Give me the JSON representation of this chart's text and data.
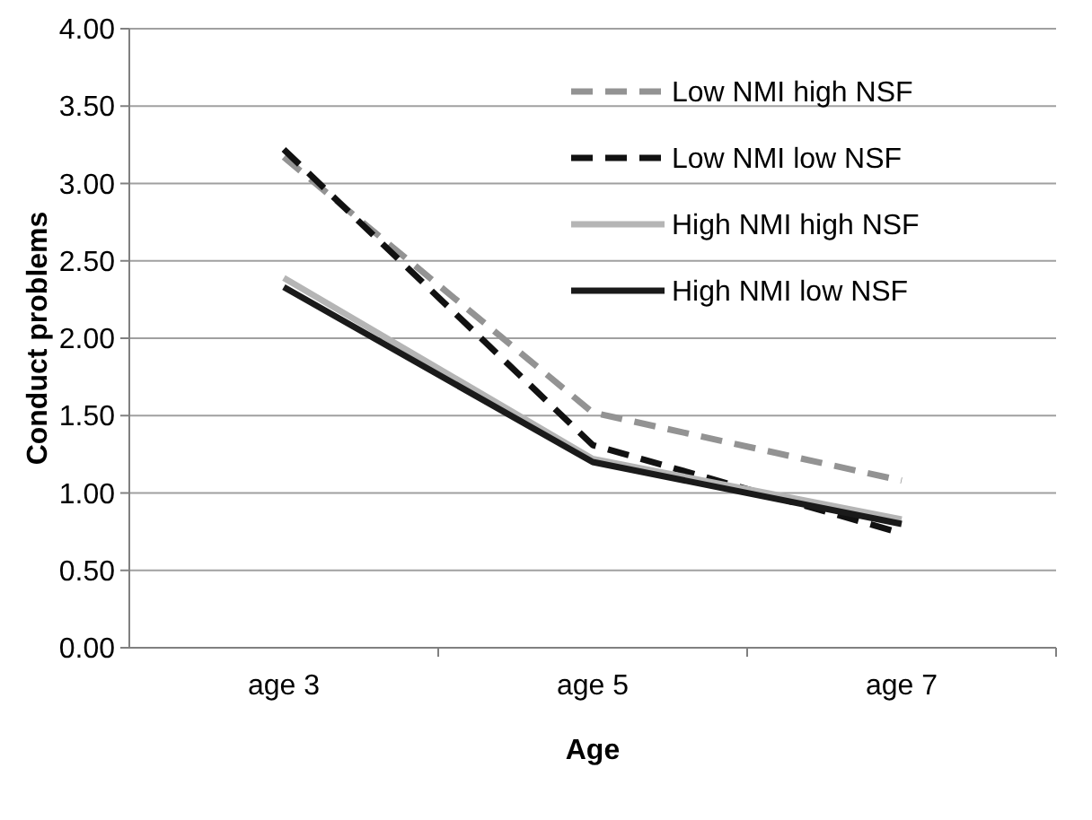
{
  "chart_data": {
    "type": "line",
    "xlabel": "Age",
    "ylabel": "Conduct problems",
    "categories": [
      "age 3",
      "age 5",
      "age 7"
    ],
    "ylim": [
      0,
      4
    ],
    "yticks": [
      {
        "value": 0,
        "label": "0.00"
      },
      {
        "value": 0.5,
        "label": "0.50"
      },
      {
        "value": 1,
        "label": "1.00"
      },
      {
        "value": 1.5,
        "label": "1.50"
      },
      {
        "value": 2,
        "label": "2.00"
      },
      {
        "value": 2.5,
        "label": "2.50"
      },
      {
        "value": 3,
        "label": "3.00"
      },
      {
        "value": 3.5,
        "label": "3.50"
      },
      {
        "value": 4,
        "label": "4.00"
      }
    ],
    "grid": "y",
    "legend": "top right",
    "series": [
      {
        "name": "Low NMI high NSF",
        "color": "#939393",
        "line_style": "dashed",
        "values": [
          3.17,
          1.52,
          1.08
        ]
      },
      {
        "name": "Low NMI low NSF",
        "color": "#111111",
        "line_style": "dashed",
        "values": [
          3.22,
          1.31,
          0.74
        ]
      },
      {
        "name": "High NMI high NSF",
        "color": "#b5b5b5",
        "line_style": "solid",
        "values": [
          2.39,
          1.22,
          0.83
        ]
      },
      {
        "name": "High NMI low NSF",
        "color": "#1a1a1a",
        "line_style": "solid",
        "values": [
          2.33,
          1.2,
          0.8
        ]
      }
    ]
  }
}
